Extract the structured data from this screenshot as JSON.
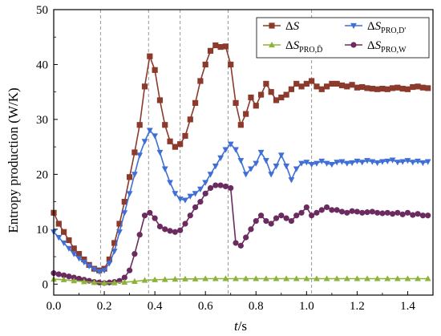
{
  "chart_data": {
    "type": "line",
    "xlabel": "t/s",
    "ylabel": "Entropy production (W/K)",
    "xlim": [
      0.0,
      1.5
    ],
    "ylim": [
      -2,
      50
    ],
    "xticks": [
      "0.0",
      "0.2",
      "0.4",
      "0.6",
      "0.8",
      "1.0",
      "1.2",
      "1.4"
    ],
    "yticks": [
      "0",
      "10",
      "20",
      "30",
      "40",
      "50"
    ],
    "xtick_values": [
      0.0,
      0.2,
      0.4,
      0.6,
      0.8,
      1.0,
      1.2,
      1.4
    ],
    "ytick_values": [
      0,
      10,
      20,
      30,
      40,
      50
    ],
    "vertical_reference_lines": [
      0.185,
      0.375,
      0.5,
      0.69,
      1.02
    ],
    "legend_position": "top-right",
    "grid": false,
    "series": [
      {
        "name": "ΔS",
        "label_main": "ΔS",
        "label_sub": "",
        "color": "#8b3a2b",
        "marker": "square",
        "x": [
          0.0,
          0.02,
          0.04,
          0.06,
          0.08,
          0.1,
          0.12,
          0.14,
          0.16,
          0.18,
          0.2,
          0.22,
          0.24,
          0.26,
          0.28,
          0.3,
          0.32,
          0.34,
          0.36,
          0.38,
          0.4,
          0.42,
          0.44,
          0.46,
          0.48,
          0.5,
          0.52,
          0.54,
          0.56,
          0.58,
          0.6,
          0.62,
          0.64,
          0.66,
          0.68,
          0.7,
          0.72,
          0.74,
          0.76,
          0.78,
          0.8,
          0.82,
          0.84,
          0.86,
          0.88,
          0.9,
          0.92,
          0.94,
          0.96,
          0.98,
          1.0,
          1.02,
          1.04,
          1.06,
          1.08,
          1.1,
          1.12,
          1.14,
          1.16,
          1.18,
          1.2,
          1.22,
          1.24,
          1.26,
          1.28,
          1.3,
          1.32,
          1.34,
          1.36,
          1.38,
          1.4,
          1.42,
          1.44,
          1.46,
          1.48
        ],
        "y": [
          13,
          11,
          9.5,
          8,
          6.5,
          5.5,
          4.5,
          3.5,
          2.8,
          2.5,
          2.8,
          4.5,
          7.5,
          11,
          15,
          19.5,
          24,
          29,
          36,
          41.5,
          39,
          33.5,
          29,
          26,
          25,
          25.5,
          27,
          30,
          33,
          37,
          40,
          42.5,
          43.5,
          43.2,
          43.3,
          40,
          33,
          29,
          31,
          34,
          32.5,
          34.5,
          36.5,
          35,
          33.5,
          34,
          34.5,
          35.5,
          36.5,
          36,
          36.5,
          37,
          36,
          35.5,
          36,
          36.5,
          36.5,
          36.2,
          36,
          36.3,
          35.8,
          35.9,
          35.7,
          35.6,
          35.5,
          35.6,
          35.5,
          35.7,
          35.8,
          35.6,
          35.5,
          35.9,
          36,
          35.8,
          35.7
        ]
      },
      {
        "name": "ΔS_PRO,D'",
        "label_main": "ΔS",
        "label_sub": "PRO,D'",
        "color": "#3f6fd6",
        "marker": "triangle-down",
        "x": [
          0.0,
          0.02,
          0.04,
          0.06,
          0.08,
          0.1,
          0.12,
          0.14,
          0.16,
          0.18,
          0.2,
          0.22,
          0.24,
          0.26,
          0.28,
          0.3,
          0.32,
          0.34,
          0.36,
          0.38,
          0.4,
          0.42,
          0.44,
          0.46,
          0.48,
          0.5,
          0.52,
          0.54,
          0.56,
          0.58,
          0.6,
          0.62,
          0.64,
          0.66,
          0.68,
          0.7,
          0.72,
          0.74,
          0.76,
          0.78,
          0.8,
          0.82,
          0.84,
          0.86,
          0.88,
          0.9,
          0.92,
          0.94,
          0.96,
          0.98,
          1.0,
          1.02,
          1.04,
          1.06,
          1.08,
          1.1,
          1.12,
          1.14,
          1.16,
          1.18,
          1.2,
          1.22,
          1.24,
          1.26,
          1.28,
          1.3,
          1.32,
          1.34,
          1.36,
          1.38,
          1.4,
          1.42,
          1.44,
          1.46,
          1.48
        ],
        "y": [
          9.5,
          8.5,
          7.5,
          6.5,
          5.5,
          4.7,
          4,
          3.3,
          2.7,
          2.3,
          2.5,
          3.8,
          6,
          9.5,
          13,
          16.5,
          20,
          23.5,
          26,
          28,
          27,
          24,
          21,
          18.5,
          16.5,
          15.5,
          15.3,
          16,
          16.5,
          17.3,
          18.5,
          20,
          21.5,
          23,
          24.5,
          25.5,
          24.5,
          22.5,
          20,
          21,
          22,
          24,
          22.5,
          20,
          21.5,
          23.5,
          21.5,
          19,
          21,
          22,
          22.2,
          21.8,
          22,
          22.4,
          22,
          21.8,
          22.2,
          22.3,
          22,
          22.1,
          22.4,
          22.2,
          22.5,
          22.3,
          22.1,
          22.3,
          22.4,
          22.6,
          22.2,
          22.3,
          22.5,
          22.2,
          22.4,
          22.1,
          22.3
        ]
      },
      {
        "name": "ΔS_PRO,D̄",
        "label_main": "ΔS",
        "label_sub": "PRO,D̄",
        "color": "#8db33a",
        "marker": "triangle-up",
        "x": [
          0.0,
          0.04,
          0.08,
          0.12,
          0.16,
          0.2,
          0.24,
          0.28,
          0.32,
          0.36,
          0.4,
          0.44,
          0.48,
          0.52,
          0.56,
          0.6,
          0.64,
          0.68,
          0.72,
          0.76,
          0.8,
          0.84,
          0.88,
          0.92,
          0.96,
          1.0,
          1.04,
          1.08,
          1.12,
          1.16,
          1.2,
          1.24,
          1.28,
          1.32,
          1.36,
          1.4,
          1.44,
          1.48
        ],
        "y": [
          0.9,
          0.8,
          0.6,
          0.45,
          0.3,
          0.2,
          0.25,
          0.35,
          0.5,
          0.7,
          0.8,
          0.85,
          0.9,
          0.95,
          0.95,
          1.0,
          1.0,
          1.0,
          1.0,
          1.0,
          1.0,
          1.0,
          1.0,
          1.0,
          1.0,
          1.0,
          1.0,
          1.0,
          1.0,
          1.0,
          1.0,
          1.0,
          1.0,
          1.0,
          1.0,
          1.0,
          1.0,
          1.0
        ]
      },
      {
        "name": "ΔS_PRO,W",
        "label_main": "ΔS",
        "label_sub": "PRO,W",
        "color": "#6b2b5e",
        "marker": "circle",
        "x": [
          0.0,
          0.02,
          0.04,
          0.06,
          0.08,
          0.1,
          0.12,
          0.14,
          0.16,
          0.18,
          0.2,
          0.22,
          0.24,
          0.26,
          0.28,
          0.3,
          0.32,
          0.34,
          0.36,
          0.38,
          0.4,
          0.42,
          0.44,
          0.46,
          0.48,
          0.5,
          0.52,
          0.54,
          0.56,
          0.58,
          0.6,
          0.62,
          0.64,
          0.66,
          0.68,
          0.7,
          0.72,
          0.74,
          0.76,
          0.78,
          0.8,
          0.82,
          0.84,
          0.86,
          0.88,
          0.9,
          0.92,
          0.94,
          0.96,
          0.98,
          1.0,
          1.02,
          1.04,
          1.06,
          1.08,
          1.1,
          1.12,
          1.14,
          1.16,
          1.18,
          1.2,
          1.22,
          1.24,
          1.26,
          1.28,
          1.3,
          1.32,
          1.34,
          1.36,
          1.38,
          1.4,
          1.42,
          1.44,
          1.46,
          1.48
        ],
        "y": [
          2.0,
          1.8,
          1.6,
          1.4,
          1.2,
          1.0,
          0.8,
          0.6,
          0.4,
          0.3,
          0.2,
          0.3,
          0.4,
          0.6,
          1.2,
          2.5,
          5.5,
          9,
          12.5,
          13,
          12,
          10.5,
          10,
          9.7,
          9.5,
          9.8,
          11,
          12.5,
          14,
          15,
          16.5,
          17.5,
          18,
          18,
          17.8,
          17.5,
          7.5,
          7,
          8.5,
          10,
          11.5,
          12.5,
          11.5,
          11,
          12,
          12.5,
          12,
          11.5,
          12.5,
          13,
          14,
          12.5,
          13,
          13.5,
          14,
          13.5,
          13.5,
          13.2,
          13,
          13.3,
          13.2,
          13,
          13.1,
          13.2,
          13,
          12.9,
          13,
          12.8,
          13,
          12.7,
          13,
          12.6,
          12.8,
          12.5,
          12.5
        ]
      }
    ]
  }
}
